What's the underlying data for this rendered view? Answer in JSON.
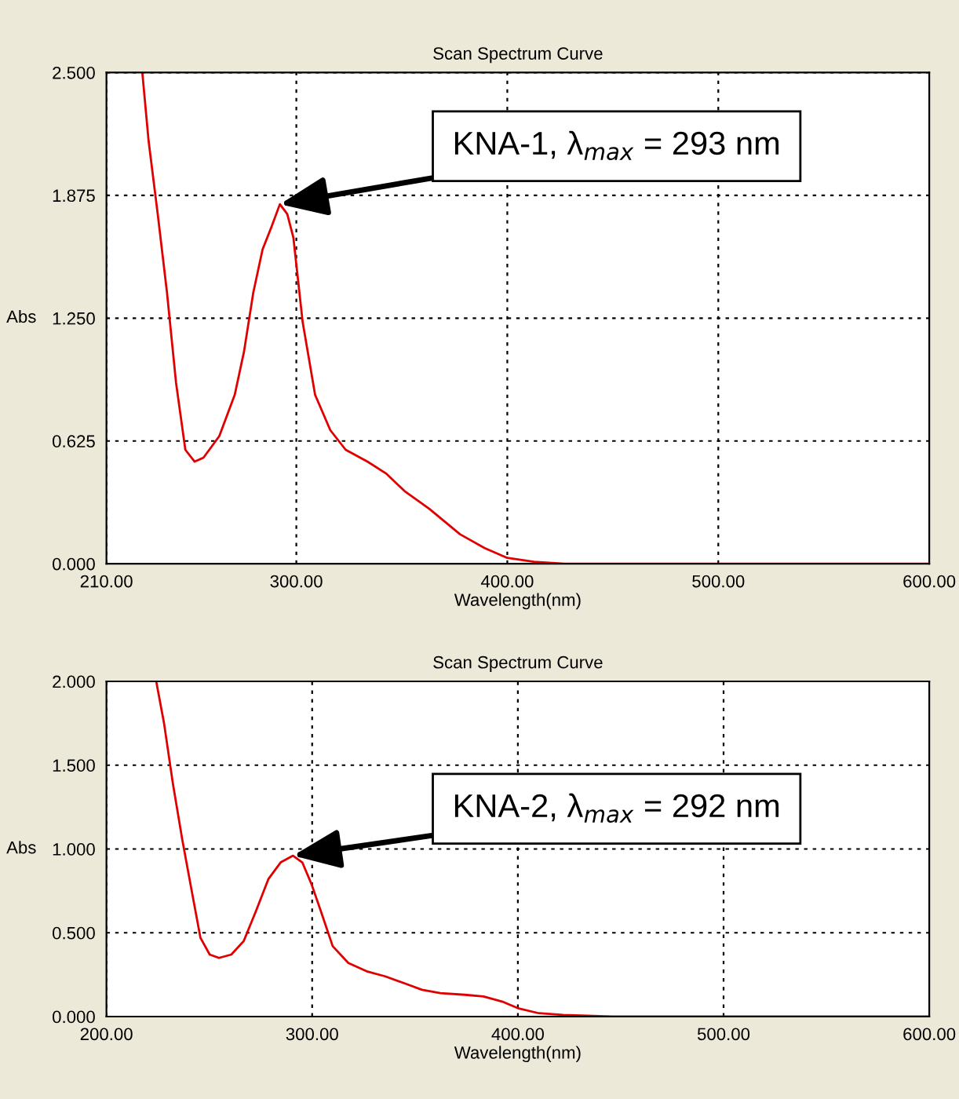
{
  "chart_data": [
    {
      "type": "line",
      "title": "Scan Spectrum Curve",
      "xlabel": "Wavelength(nm)",
      "ylabel": "Abs",
      "xlim": [
        210,
        600
      ],
      "xticks": [
        {
          "value": 210,
          "label": "210.00"
        },
        {
          "value": 300,
          "label": "300.00"
        },
        {
          "value": 400,
          "label": "400.00"
        },
        {
          "value": 500,
          "label": "500.00"
        },
        {
          "value": 600,
          "label": "600.00"
        }
      ],
      "ylim": [
        0,
        2.5
      ],
      "yticks": [
        {
          "value": 0,
          "label": "0.000"
        },
        {
          "value": 0.625,
          "label": "0.625"
        },
        {
          "value": 1.25,
          "label": "1.250"
        },
        {
          "value": 1.875,
          "label": "1.875"
        },
        {
          "value": 2.5,
          "label": "2.500"
        }
      ],
      "grid": true,
      "legend": false,
      "line_style": "solid",
      "annotations": [
        {
          "text": "KNA-1, λ$_{max}$ = 293 nm",
          "x": 292.2,
          "y": 1.83
        }
      ],
      "series": [
        {
          "color": "#e00000",
          "x": [
            227,
            230,
            234.3,
            238.7,
            243,
            247.4,
            251.8,
            256,
            263.5,
            270.8,
            275.2,
            279.6,
            284,
            288.4,
            292.2,
            295.7,
            298.6,
            303,
            308.9,
            316.1,
            323.4,
            333.7,
            342.5,
            351.3,
            363,
            377.6,
            389.3,
            400,
            412.6,
            427,
            600
          ],
          "values": [
            2.5,
            2.15,
            1.78,
            1.38,
            0.92,
            0.58,
            0.52,
            0.54,
            0.65,
            0.86,
            1.08,
            1.38,
            1.6,
            1.72,
            1.83,
            1.78,
            1.66,
            1.23,
            0.86,
            0.68,
            0.58,
            0.52,
            0.46,
            0.37,
            0.28,
            0.15,
            0.08,
            0.03,
            0.01,
            0,
            0
          ]
        }
      ]
    },
    {
      "type": "line",
      "title": "Scan Spectrum Curve",
      "xlabel": "Wavelength(nm)",
      "ylabel": "Abs",
      "xlim": [
        200,
        600
      ],
      "xticks": [
        {
          "value": 200,
          "label": "200.00"
        },
        {
          "value": 300,
          "label": "300.00"
        },
        {
          "value": 400,
          "label": "400.00"
        },
        {
          "value": 500,
          "label": "500.00"
        },
        {
          "value": 600,
          "label": "600.00"
        }
      ],
      "ylim": [
        0,
        2.0
      ],
      "yticks": [
        {
          "value": 0,
          "label": "0.000"
        },
        {
          "value": 0.5,
          "label": "0.500"
        },
        {
          "value": 1.0,
          "label": "1.000"
        },
        {
          "value": 1.5,
          "label": "1.500"
        },
        {
          "value": 2.0,
          "label": "2.000"
        }
      ],
      "grid": true,
      "legend": false,
      "line_style": "solid",
      "annotations": [
        {
          "text": "KNA-2, λ$_{max}$ = 292 nm",
          "x": 290.7,
          "y": 0.96
        }
      ],
      "series": [
        {
          "color": "#e00000",
          "x": [
            224.2,
            228,
            232.3,
            236.8,
            241.3,
            245.7,
            250.2,
            254.7,
            260.7,
            266.7,
            272.7,
            278.7,
            284.7,
            290.7,
            295.2,
            299.7,
            304.2,
            310,
            317.6,
            326.5,
            335.5,
            344.5,
            353.4,
            362.3,
            374.3,
            383.3,
            392.3,
            400,
            410.2,
            422,
            446,
            600
          ],
          "values": [
            2.0,
            1.75,
            1.39,
            1.06,
            0.76,
            0.47,
            0.37,
            0.35,
            0.37,
            0.45,
            0.63,
            0.82,
            0.92,
            0.96,
            0.92,
            0.79,
            0.63,
            0.42,
            0.32,
            0.27,
            0.24,
            0.2,
            0.16,
            0.14,
            0.13,
            0.12,
            0.09,
            0.05,
            0.02,
            0.01,
            0,
            0
          ]
        }
      ]
    }
  ]
}
